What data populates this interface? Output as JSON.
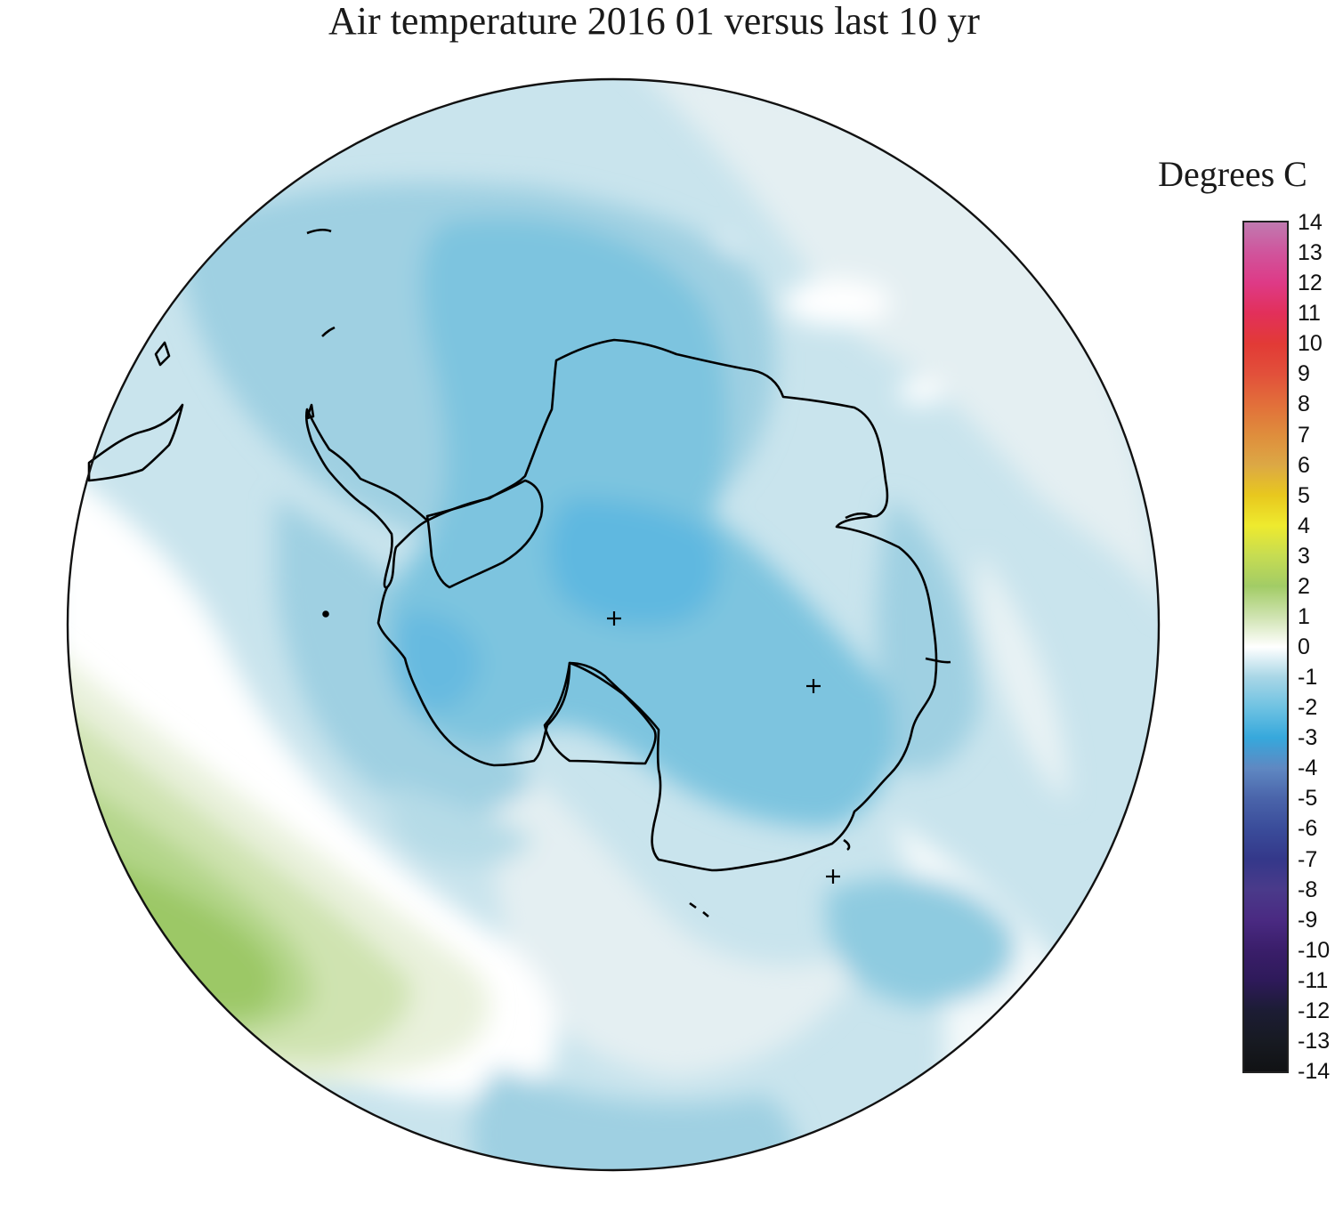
{
  "title": "Air temperature 2016 01 versus last 10 yr",
  "legend": {
    "units_label": "Degrees C",
    "min": -14,
    "max": 14,
    "tick_labels": [
      "14",
      "13",
      "12",
      "11",
      "10",
      "9",
      "8",
      "7",
      "6",
      "5",
      "4",
      "3",
      "2",
      "1",
      "0",
      "-1",
      "-2",
      "-3",
      "-4",
      "-5",
      "-6",
      "-7",
      "-8",
      "-9",
      "-10",
      "-11",
      "-12",
      "-13",
      "-14"
    ],
    "colors": {
      "14": "#c07ab0",
      "13": "#d0549c",
      "12": "#de3a86",
      "11": "#e2305a",
      "10": "#e23a36",
      "9": "#e2503a",
      "8": "#e26f3a",
      "7": "#df8d3c",
      "6": "#dca845",
      "5": "#e8c81e",
      "4": "#eeea2e",
      "3": "#c6dc52",
      "2": "#a2cc66",
      "1": "#cfe3b0",
      "0": "#ffffff",
      "-1": "#a8d6e6",
      "-2": "#6ec2e2",
      "-3": "#36a8dc",
      "-4": "#5f88c2",
      "-5": "#4a64aa",
      "-6": "#3a4c9a",
      "-7": "#34388a",
      "-8": "#4a3a8a",
      "-9": "#4a2a82",
      "-10": "#3a1e6a",
      "-11": "#2e1a5a",
      "-12": "#1c1c34",
      "-13": "#171a22",
      "-14": "#111214"
    }
  },
  "map": {
    "projection": "south-polar-stereographic",
    "region": "Antarctica and Southern Ocean",
    "markers": [
      "pole-cross",
      "station-cross-east",
      "station-cross-southeast"
    ]
  }
}
